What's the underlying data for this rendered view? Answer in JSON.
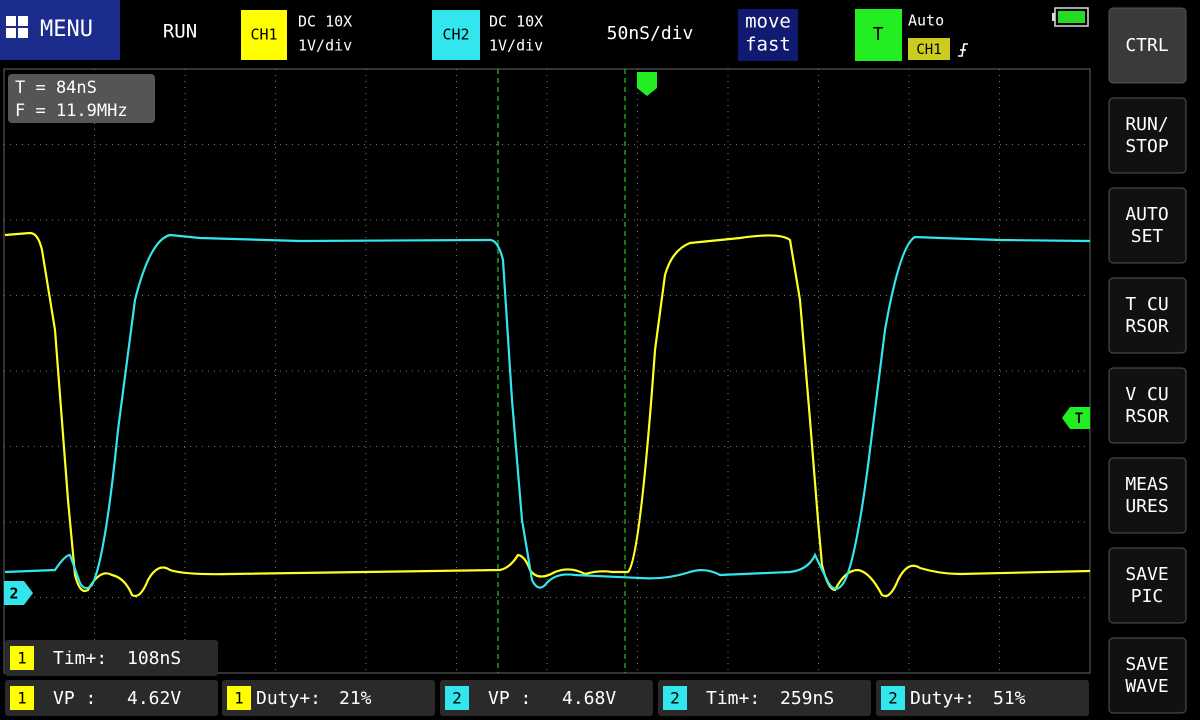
{
  "top_bar": {
    "menu": "MENU",
    "run_state": "RUN",
    "ch1": {
      "label": "CH1",
      "coupling": "DC 10X",
      "scale": "1V/div"
    },
    "ch2": {
      "label": "CH2",
      "coupling": "DC 10X",
      "scale": "1V/div"
    },
    "timebase": "50nS/div",
    "move_mode": [
      "move",
      "fast"
    ],
    "trigger": {
      "label": "T",
      "mode": "Auto",
      "source": "CH1"
    }
  },
  "cursor_readout": {
    "time": "T = 84nS",
    "frequency": "F = 11.9MHz"
  },
  "markers": {
    "trigger_level": "T",
    "ch2_ground": "2"
  },
  "measurements": [
    {
      "channel": "1",
      "label": "Tim+:",
      "value": "108nS"
    },
    {
      "channel": "1",
      "label": "VP :",
      "value": "4.62V"
    },
    {
      "channel": "1",
      "label": "Duty+:",
      "value": "21%"
    },
    {
      "channel": "2",
      "label": "VP :",
      "value": "4.68V"
    },
    {
      "channel": "2",
      "label": "Tim+:",
      "value": "259nS"
    },
    {
      "channel": "2",
      "label": "Duty+:",
      "value": "51%"
    }
  ],
  "buttons": [
    [
      "CTRL"
    ],
    [
      "RUN/",
      "STOP"
    ],
    [
      "AUTO",
      "SET"
    ],
    [
      "T CU",
      "RSOR"
    ],
    [
      "V CU",
      "RSOR"
    ],
    [
      "MEAS",
      "URES"
    ],
    [
      "SAVE",
      "PIC"
    ],
    [
      "SAVE",
      "WAVE"
    ]
  ]
}
